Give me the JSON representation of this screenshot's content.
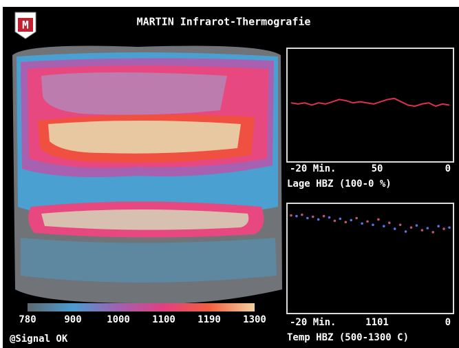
{
  "header": {
    "logo": "M",
    "title": "MARTIN Infrarot-Thermografie"
  },
  "scale": {
    "labels": [
      "780",
      "900",
      "1000",
      "1100",
      "1190",
      "1300"
    ]
  },
  "status": "@Signal OK",
  "panels": [
    {
      "type": "line",
      "color": "#e03050",
      "ylim": [
        0,
        100
      ],
      "values": [
        52,
        51,
        52,
        50,
        52,
        51,
        53,
        55,
        54,
        52,
        53,
        52,
        51,
        53,
        55,
        56,
        53,
        50,
        49,
        51,
        52,
        49,
        51,
        50
      ],
      "x_labels": [
        "-20 Min.",
        "50",
        "0"
      ],
      "caption": "Lage HBZ (100-0 %)"
    },
    {
      "type": "scatter",
      "color": "#c05080",
      "ylim": [
        500,
        1300
      ],
      "values": [
        1220,
        1215,
        1225,
        1200,
        1210,
        1190,
        1215,
        1205,
        1180,
        1195,
        1170,
        1185,
        1200,
        1160,
        1175,
        1150,
        1190,
        1140,
        1165,
        1120,
        1150,
        1100,
        1130,
        1145,
        1110,
        1125,
        1095,
        1140,
        1120,
        1130
      ],
      "x_labels": [
        "-20 Min.",
        "1101",
        "0"
      ],
      "caption": "Temp HBZ (500-1300 C)"
    }
  ]
}
